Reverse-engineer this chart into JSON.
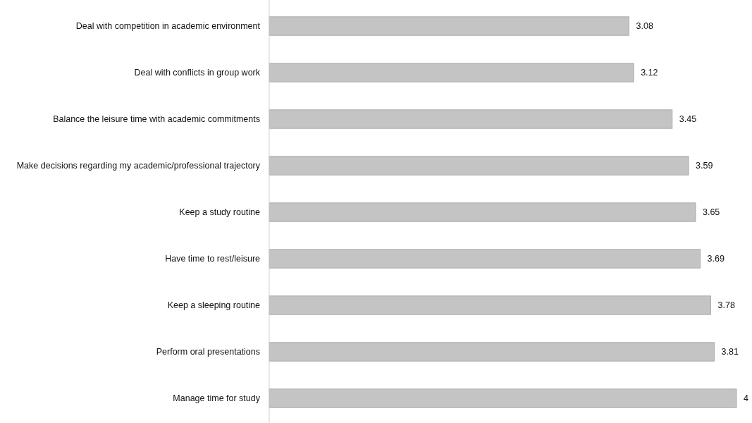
{
  "chart_data": {
    "type": "bar",
    "orientation": "horizontal",
    "data_labels": true,
    "color": "#c4c4c4",
    "categories": [
      "Deal with competition in academic environment",
      "Deal with conflicts in group work",
      "Balance the leisure time with academic commitments",
      "Make decisions regarding my academic/professional trajectory",
      "Keep a study routine",
      "Have time to rest/leisure",
      "Keep a sleeping routine",
      "Perform oral presentations",
      "Manage time for study"
    ],
    "values": [
      3.08,
      3.12,
      3.45,
      3.59,
      3.65,
      3.69,
      3.78,
      3.81,
      4
    ]
  }
}
